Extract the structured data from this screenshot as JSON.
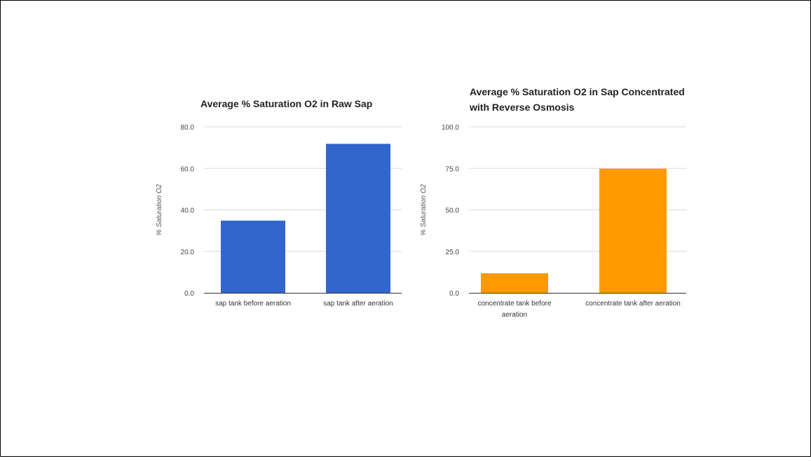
{
  "chart_data": [
    {
      "type": "bar",
      "title": "Average % Saturation O2 in Raw Sap",
      "xlabel": "",
      "ylabel": "% Saturation O2",
      "categories": [
        "sap tank before aeration",
        "sap tank after aeration"
      ],
      "values": [
        34.8,
        71.8
      ],
      "ylim": [
        0,
        80
      ],
      "yticks": [
        "0.0",
        "20.0",
        "40.0",
        "60.0",
        "80.0"
      ],
      "grid": true,
      "color": "#3366cc"
    },
    {
      "type": "bar",
      "title": "Average % Saturation O2 in Sap Concentrated with Reverse Osmosis",
      "xlabel": "",
      "ylabel": "% Saturation O2",
      "categories": [
        "concentrate tank before aeration",
        "concentrate tank after aeration"
      ],
      "values": [
        11.8,
        74.8
      ],
      "ylim": [
        0,
        100
      ],
      "yticks": [
        "0.0",
        "25.0",
        "50.0",
        "75.0",
        "100.0"
      ],
      "grid": true,
      "color": "#ff9900"
    }
  ]
}
